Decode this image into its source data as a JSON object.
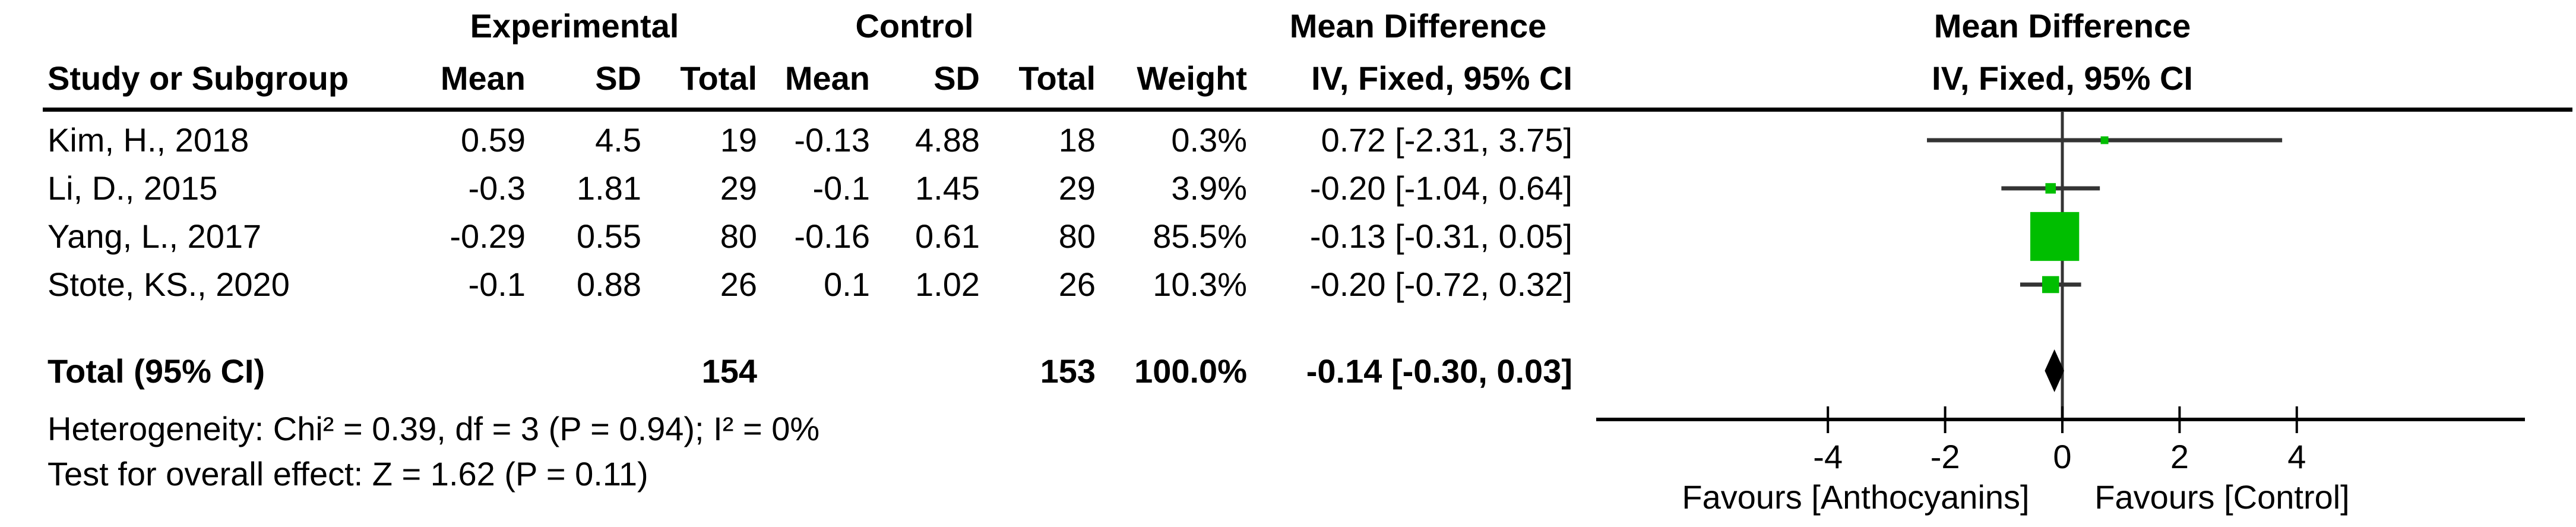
{
  "table": {
    "group_headers": {
      "experimental": "Experimental",
      "control": "Control",
      "mean_difference": "Mean Difference"
    },
    "col_headers": {
      "study": "Study or Subgroup",
      "mean": "Mean",
      "sd": "SD",
      "total": "Total",
      "weight": "Weight",
      "ci": "IV, Fixed, 95% CI"
    },
    "rows": [
      {
        "study": "Kim, H., 2018",
        "exp_mean": "0.59",
        "exp_sd": "4.5",
        "exp_total": "19",
        "ctrl_mean": "-0.13",
        "ctrl_sd": "4.88",
        "ctrl_total": "18",
        "weight": "0.3%",
        "ci": "0.72 [-2.31, 3.75]"
      },
      {
        "study": "Li, D., 2015",
        "exp_mean": "-0.3",
        "exp_sd": "1.81",
        "exp_total": "29",
        "ctrl_mean": "-0.1",
        "ctrl_sd": "1.45",
        "ctrl_total": "29",
        "weight": "3.9%",
        "ci": "-0.20 [-1.04, 0.64]"
      },
      {
        "study": "Yang, L., 2017",
        "exp_mean": "-0.29",
        "exp_sd": "0.55",
        "exp_total": "80",
        "ctrl_mean": "-0.16",
        "ctrl_sd": "0.61",
        "ctrl_total": "80",
        "weight": "85.5%",
        "ci": "-0.13 [-0.31, 0.05]"
      },
      {
        "study": "Stote, KS., 2020",
        "exp_mean": "-0.1",
        "exp_sd": "0.88",
        "exp_total": "26",
        "ctrl_mean": "0.1",
        "ctrl_sd": "1.02",
        "ctrl_total": "26",
        "weight": "10.3%",
        "ci": "-0.20 [-0.72, 0.32]"
      }
    ],
    "total_row": {
      "label": "Total (95% CI)",
      "exp_total": "154",
      "ctrl_total": "153",
      "weight": "100.0%",
      "ci": "-0.14 [-0.30, 0.03]"
    },
    "heterogeneity": "Heterogeneity: Chi² = 0.39, df = 3 (P = 0.94); I² = 0%",
    "overall_effect": "Test for overall effect: Z = 1.62 (P = 0.11)"
  },
  "plot": {
    "header_line1": "Mean Difference",
    "header_line2": "IV, Fixed, 95% CI",
    "marker_color": "#00BE00",
    "line_color": "#343434",
    "axis_color": "#000000"
  },
  "chart_data": {
    "type": "forest",
    "effect_measure": "Mean Difference",
    "model": "IV, Fixed, 95% CI",
    "studies": [
      {
        "name": "Kim, H., 2018",
        "md": 0.72,
        "ci_low": -2.31,
        "ci_high": 3.75,
        "weight_pct": 0.3
      },
      {
        "name": "Li, D., 2015",
        "md": -0.2,
        "ci_low": -1.04,
        "ci_high": 0.64,
        "weight_pct": 3.9
      },
      {
        "name": "Yang, L., 2017",
        "md": -0.13,
        "ci_low": -0.31,
        "ci_high": 0.05,
        "weight_pct": 85.5
      },
      {
        "name": "Stote, KS., 2020",
        "md": -0.2,
        "ci_low": -0.72,
        "ci_high": 0.32,
        "weight_pct": 10.3
      }
    ],
    "total": {
      "label": "Total (95% CI)",
      "md": -0.14,
      "ci_low": -0.3,
      "ci_high": 0.03,
      "weight_pct": 100.0
    },
    "heterogeneity": {
      "chi2": 0.39,
      "df": 3,
      "p": 0.94,
      "i2_pct": 0
    },
    "overall_effect": {
      "z": 1.62,
      "p": 0.11
    },
    "axis_ticks": [
      -4,
      -2,
      0,
      2,
      4
    ],
    "axis_range_shown": [
      -4,
      4
    ],
    "xlabel_left": "Favours [Anthocyanins]",
    "xlabel_right": "Favours [Control]",
    "legend_position": "none",
    "grid": false
  }
}
